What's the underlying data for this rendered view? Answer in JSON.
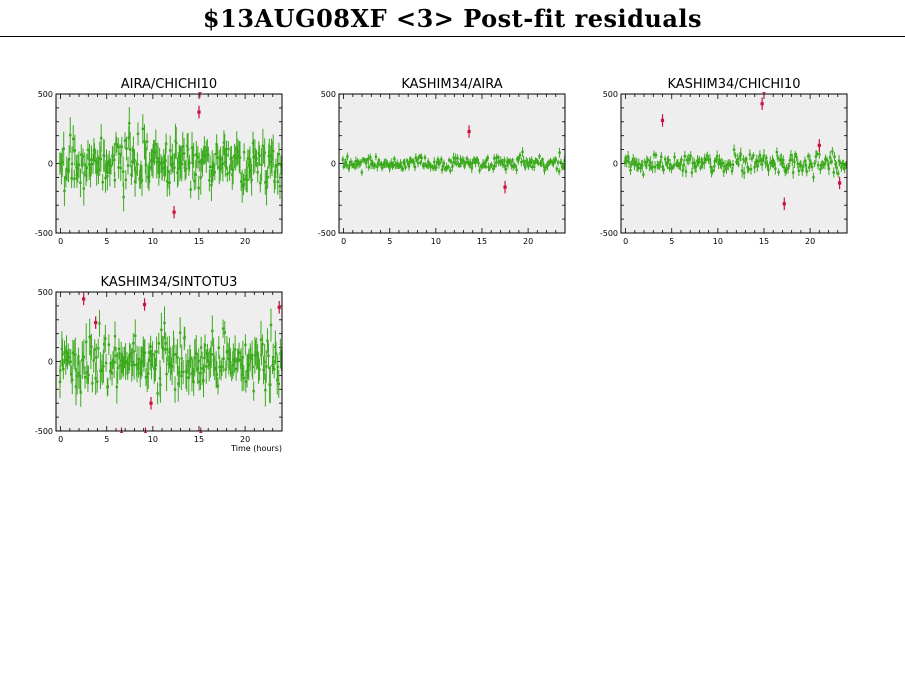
{
  "title": "$13AUG08XF <3> Post-fit residuals",
  "colors": {
    "good": "#3aaa1c",
    "outlier": "#c8103e",
    "plot_bg": "#eeeeee"
  },
  "chart_data": [
    {
      "type": "scatter",
      "title": "AIRA/CHICHI10",
      "xlabel": "",
      "ylabel": "",
      "xlim": [
        -0.5,
        24
      ],
      "ylim": [
        -500,
        500
      ],
      "xticks": [
        0,
        5,
        10,
        15,
        20
      ],
      "yticks": [
        -500,
        0,
        500
      ],
      "noise_amplitude": 160,
      "n_points": 230,
      "outliers": [
        [
          12.3,
          -350
        ],
        [
          15.0,
          370
        ],
        [
          15.1,
          520
        ]
      ]
    },
    {
      "type": "scatter",
      "title": "KASHIM34/AIRA",
      "xlabel": "",
      "ylabel": "",
      "xlim": [
        -0.5,
        24
      ],
      "ylim": [
        -500,
        500
      ],
      "xticks": [
        0,
        5,
        10,
        15,
        20
      ],
      "yticks": [
        -500,
        0,
        500
      ],
      "noise_amplitude": 45,
      "n_points": 220,
      "outliers": [
        [
          13.6,
          230
        ],
        [
          17.5,
          -170
        ]
      ]
    },
    {
      "type": "scatter",
      "title": "KASHIM34/CHICHI10",
      "xlabel": "",
      "ylabel": "",
      "xlim": [
        -0.5,
        24
      ],
      "ylim": [
        -500,
        500
      ],
      "xticks": [
        0,
        5,
        10,
        15,
        20
      ],
      "yticks": [
        -500,
        0,
        500
      ],
      "noise_amplitude": 60,
      "n_points": 200,
      "outliers": [
        [
          4.0,
          310
        ],
        [
          14.8,
          430
        ],
        [
          15.0,
          520
        ],
        [
          17.2,
          -290
        ],
        [
          21.0,
          130
        ],
        [
          23.2,
          -140
        ]
      ]
    },
    {
      "type": "scatter",
      "title": "KASHIM34/SINTOTU3",
      "xlabel": "Time (hours)",
      "ylabel": "",
      "xlim": [
        -0.5,
        24
      ],
      "ylim": [
        -500,
        500
      ],
      "xticks": [
        0,
        5,
        10,
        15,
        20
      ],
      "yticks": [
        -500,
        0,
        500
      ],
      "noise_amplitude": 170,
      "n_points": 230,
      "outliers": [
        [
          2.5,
          450
        ],
        [
          3.8,
          280
        ],
        [
          6.6,
          -520
        ],
        [
          9.1,
          410
        ],
        [
          9.2,
          -520
        ],
        [
          9.8,
          -300
        ],
        [
          15.2,
          -520
        ],
        [
          23.7,
          390
        ]
      ]
    }
  ]
}
